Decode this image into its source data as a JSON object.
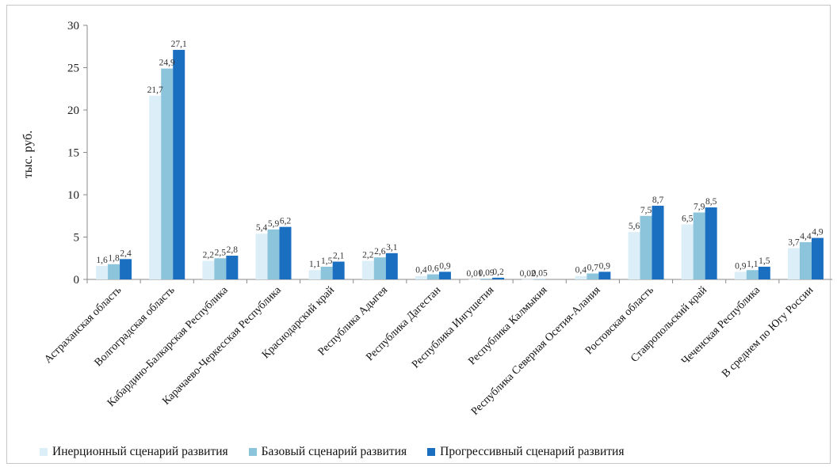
{
  "chart_data": {
    "type": "bar",
    "ylabel": "тыс. руб.",
    "ylim": [
      0,
      30
    ],
    "yticks": [
      "0",
      "5",
      "10",
      "15",
      "20",
      "25",
      "30"
    ],
    "grid": false,
    "legend_position": "bottom",
    "categories": [
      "Астраханская область",
      "Волгоградская область",
      "Кабардино-Балкарская Республика",
      "Карачаево-Черкесская Республика",
      "Краснодарский край",
      "Республика Адыгея",
      "Республика Дагестан",
      "Республика Ингушетия",
      "Республика Калмыкия",
      "Республика Северная Осетия-Алания",
      "Ростовская область",
      "Ставропольский край",
      "Чеченская Республика",
      "В среднем по Югу России"
    ],
    "series": [
      {
        "name": "Инерционный сценарий развития",
        "color": "#dceff8",
        "values": [
          1.6,
          21.7,
          2.2,
          5.4,
          1.1,
          2.2,
          0.4,
          0.01,
          0.02,
          0.4,
          5.6,
          6.5,
          0.9,
          3.7
        ],
        "labels": [
          "1,6",
          "21,7",
          "2,2",
          "5,4",
          "1,1",
          "2,2",
          "0,4",
          "0,01",
          "0,02",
          "0,4",
          "5,6",
          "6,5",
          "0,9",
          "3,7"
        ]
      },
      {
        "name": "Базовый сценарий развития",
        "color": "#8cc4dc",
        "values": [
          1.8,
          24.9,
          2.5,
          5.9,
          1.5,
          2.6,
          0.6,
          0.09,
          0.05,
          0.7,
          7.5,
          7.9,
          1.1,
          4.4
        ],
        "labels": [
          "1,8",
          "24,9",
          "2,5",
          "5,9",
          "1,5",
          "2,6",
          "0,6",
          "0,09",
          "0,05",
          "0,7",
          "7,5",
          "7,9",
          "1,1",
          "4,4"
        ]
      },
      {
        "name": "Прогрессивный сценарий развития",
        "color": "#1a6fc0",
        "values": [
          2.4,
          27.1,
          2.8,
          6.2,
          2.1,
          3.1,
          0.9,
          0.2,
          null,
          0.9,
          8.7,
          8.5,
          1.5,
          4.9
        ],
        "labels": [
          "2,4",
          "27,1",
          "2,8",
          "6,2",
          "2,1",
          "3,1",
          "0,9",
          "0,2",
          "",
          "0,9",
          "8,7",
          "8,5",
          "1,5",
          "4,9"
        ]
      }
    ]
  }
}
